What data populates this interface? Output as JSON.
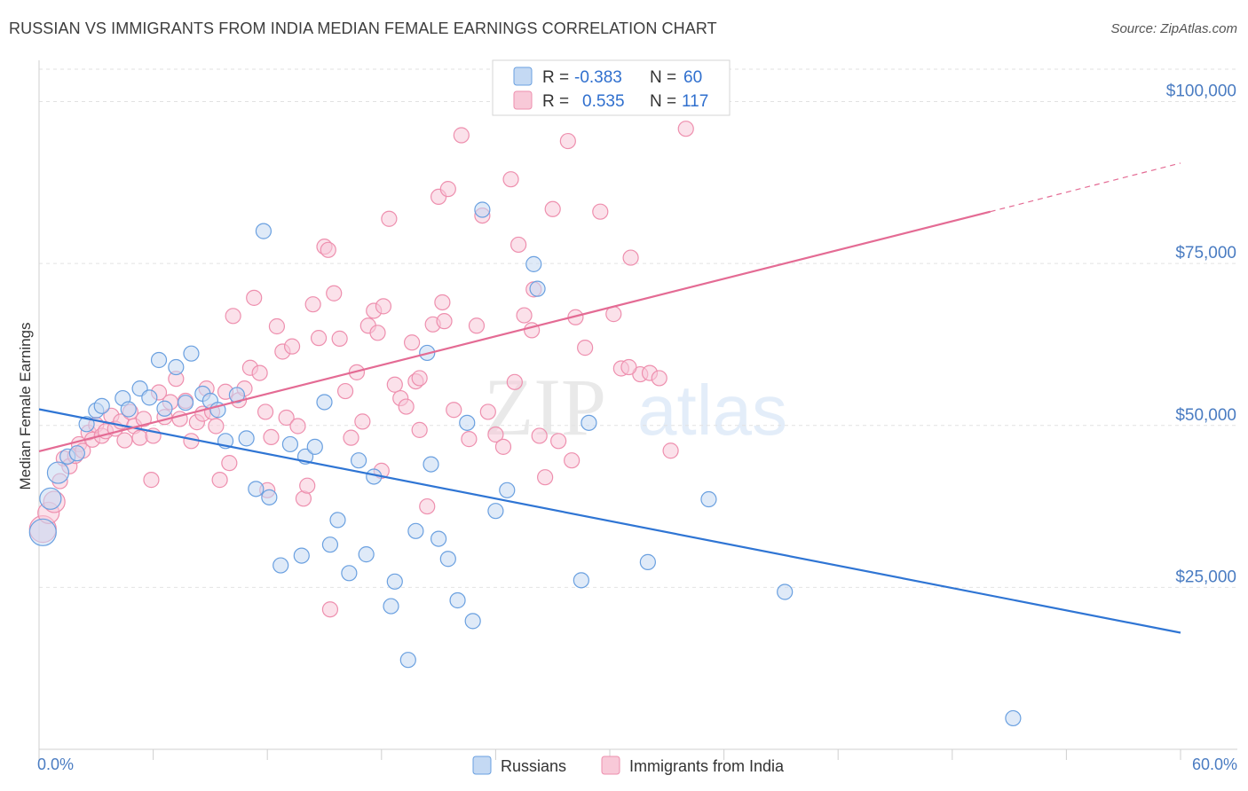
{
  "title": "RUSSIAN VS IMMIGRANTS FROM INDIA MEDIAN FEMALE EARNINGS CORRELATION CHART",
  "source": "Source: ZipAtlas.com",
  "watermark": {
    "part1": "ZIP",
    "part2": "atlas"
  },
  "chart_data": {
    "type": "scatter",
    "ylabel": "Median Female Earnings",
    "xlim": [
      0,
      60
    ],
    "ylim": [
      0,
      105000
    ],
    "x_tick_labels": {
      "min": "0.0%",
      "max": "60.0%"
    },
    "y_ticks": [
      {
        "value": 25000,
        "label": "$25,000"
      },
      {
        "value": 50000,
        "label": "$50,000"
      },
      {
        "value": 75000,
        "label": "$75,000"
      },
      {
        "value": 100000,
        "label": "$100,000"
      }
    ],
    "grid": true,
    "legend_position": "top-center",
    "series": [
      {
        "name": "Russians",
        "color": "#6aa0e0",
        "fill": "#c4d9f3",
        "line_color": "#2f75d4",
        "r_label": "R =",
        "r_value": "-0.383",
        "n_label": "N =",
        "n_value": "60",
        "trend": {
          "x": [
            0,
            60
          ],
          "y": [
            52500,
            18000
          ]
        },
        "points": [
          [
            0.2,
            33500
          ],
          [
            0.6,
            38700
          ],
          [
            1.0,
            42700
          ],
          [
            1.5,
            45200
          ],
          [
            2.0,
            45700
          ],
          [
            2.5,
            50200
          ],
          [
            3.0,
            52300
          ],
          [
            3.3,
            53000
          ],
          [
            4.4,
            54200
          ],
          [
            4.7,
            52500
          ],
          [
            5.3,
            55700
          ],
          [
            5.8,
            54300
          ],
          [
            6.3,
            60100
          ],
          [
            6.6,
            52600
          ],
          [
            7.2,
            59000
          ],
          [
            7.7,
            53500
          ],
          [
            8.0,
            61100
          ],
          [
            8.6,
            54900
          ],
          [
            9.0,
            53800
          ],
          [
            9.4,
            52400
          ],
          [
            9.8,
            47600
          ],
          [
            10.4,
            54700
          ],
          [
            10.9,
            48000
          ],
          [
            11.4,
            40200
          ],
          [
            11.8,
            80000
          ],
          [
            12.1,
            38900
          ],
          [
            12.7,
            28400
          ],
          [
            13.2,
            47100
          ],
          [
            13.8,
            29900
          ],
          [
            14.0,
            45200
          ],
          [
            14.5,
            46700
          ],
          [
            15.0,
            53600
          ],
          [
            15.3,
            31600
          ],
          [
            15.7,
            35400
          ],
          [
            16.3,
            27200
          ],
          [
            16.8,
            44600
          ],
          [
            17.2,
            30100
          ],
          [
            17.6,
            42100
          ],
          [
            18.5,
            22100
          ],
          [
            18.7,
            25900
          ],
          [
            19.4,
            13800
          ],
          [
            19.8,
            33700
          ],
          [
            20.4,
            61200
          ],
          [
            20.6,
            44000
          ],
          [
            21.0,
            32500
          ],
          [
            21.5,
            29400
          ],
          [
            22.0,
            23000
          ],
          [
            22.5,
            50400
          ],
          [
            22.8,
            19800
          ],
          [
            23.3,
            83300
          ],
          [
            24.0,
            36800
          ],
          [
            24.6,
            40000
          ],
          [
            26.0,
            74900
          ],
          [
            26.2,
            71100
          ],
          [
            28.5,
            26100
          ],
          [
            28.9,
            50400
          ],
          [
            32.0,
            28900
          ],
          [
            35.2,
            38600
          ],
          [
            39.2,
            24300
          ],
          [
            51.2,
            4800
          ]
        ]
      },
      {
        "name": "Immigrants from India",
        "color": "#ee8fae",
        "fill": "#f8c9d8",
        "line_color": "#e46b94",
        "r_label": "R =",
        "r_value": "0.535",
        "n_label": "N =",
        "n_value": "117",
        "trend": {
          "x": [
            0,
            50
          ],
          "y": [
            46000,
            83000
          ]
        },
        "trend_dashed": {
          "x": [
            50,
            60
          ],
          "y": [
            83000,
            90500
          ]
        },
        "points": [
          [
            0.2,
            34000
          ],
          [
            0.5,
            36500
          ],
          [
            0.8,
            38200
          ],
          [
            1.1,
            41400
          ],
          [
            1.3,
            44900
          ],
          [
            1.6,
            43700
          ],
          [
            1.9,
            45300
          ],
          [
            2.1,
            47100
          ],
          [
            2.3,
            46100
          ],
          [
            2.6,
            48900
          ],
          [
            2.8,
            47800
          ],
          [
            3.0,
            50100
          ],
          [
            3.3,
            48400
          ],
          [
            3.5,
            49100
          ],
          [
            3.8,
            51500
          ],
          [
            4.0,
            49500
          ],
          [
            4.3,
            50600
          ],
          [
            4.5,
            47700
          ],
          [
            4.8,
            52100
          ],
          [
            5.0,
            49900
          ],
          [
            5.3,
            48100
          ],
          [
            5.5,
            51000
          ],
          [
            5.9,
            41600
          ],
          [
            6.0,
            48400
          ],
          [
            6.3,
            55100
          ],
          [
            6.6,
            51300
          ],
          [
            6.9,
            53600
          ],
          [
            7.2,
            57200
          ],
          [
            7.4,
            51000
          ],
          [
            7.7,
            53800
          ],
          [
            8.0,
            47600
          ],
          [
            8.3,
            50500
          ],
          [
            8.6,
            51800
          ],
          [
            8.8,
            55700
          ],
          [
            9.1,
            52100
          ],
          [
            9.3,
            49900
          ],
          [
            9.5,
            41600
          ],
          [
            9.8,
            55200
          ],
          [
            10.0,
            44200
          ],
          [
            10.2,
            66900
          ],
          [
            10.5,
            53900
          ],
          [
            10.8,
            55700
          ],
          [
            11.1,
            58900
          ],
          [
            11.3,
            69700
          ],
          [
            11.6,
            58100
          ],
          [
            11.9,
            52100
          ],
          [
            12.2,
            48200
          ],
          [
            12.5,
            65300
          ],
          [
            12.8,
            61400
          ],
          [
            13.0,
            51200
          ],
          [
            13.3,
            62200
          ],
          [
            13.6,
            49900
          ],
          [
            13.9,
            38700
          ],
          [
            14.1,
            40700
          ],
          [
            14.4,
            68700
          ],
          [
            14.7,
            63500
          ],
          [
            15.0,
            77600
          ],
          [
            15.2,
            77100
          ],
          [
            15.5,
            70400
          ],
          [
            15.8,
            63400
          ],
          [
            16.1,
            55300
          ],
          [
            16.4,
            48100
          ],
          [
            16.7,
            58200
          ],
          [
            17.0,
            50600
          ],
          [
            17.3,
            65400
          ],
          [
            17.6,
            67700
          ],
          [
            17.8,
            64300
          ],
          [
            18.1,
            68400
          ],
          [
            18.4,
            81900
          ],
          [
            18.7,
            56300
          ],
          [
            19.0,
            54200
          ],
          [
            19.3,
            52900
          ],
          [
            19.6,
            62800
          ],
          [
            19.8,
            56800
          ],
          [
            20.0,
            57300
          ],
          [
            20.4,
            37500
          ],
          [
            20.7,
            65600
          ],
          [
            21.0,
            85300
          ],
          [
            21.3,
            66100
          ],
          [
            21.5,
            86500
          ],
          [
            21.8,
            52400
          ],
          [
            22.2,
            94800
          ],
          [
            22.6,
            47900
          ],
          [
            23.0,
            65400
          ],
          [
            23.3,
            82400
          ],
          [
            23.6,
            52100
          ],
          [
            24.0,
            48600
          ],
          [
            24.4,
            46700
          ],
          [
            24.8,
            88000
          ],
          [
            25.2,
            77900
          ],
          [
            25.5,
            67000
          ],
          [
            25.9,
            64700
          ],
          [
            26.3,
            48400
          ],
          [
            26.6,
            42000
          ],
          [
            27.0,
            83400
          ],
          [
            27.3,
            47600
          ],
          [
            27.8,
            93900
          ],
          [
            28.2,
            66700
          ],
          [
            28.7,
            62000
          ],
          [
            29.5,
            83000
          ],
          [
            30.2,
            67200
          ],
          [
            30.6,
            58800
          ],
          [
            31.1,
            75900
          ],
          [
            31.6,
            57900
          ],
          [
            32.1,
            58100
          ],
          [
            32.6,
            57300
          ],
          [
            33.2,
            46100
          ],
          [
            34.0,
            95800
          ],
          [
            15.3,
            21600
          ],
          [
            20.0,
            49300
          ],
          [
            21.2,
            69000
          ],
          [
            25.0,
            56700
          ],
          [
            31.0,
            59000
          ],
          [
            28.0,
            44600
          ],
          [
            18.0,
            43000
          ],
          [
            12.0,
            40000
          ],
          [
            26.0,
            71000
          ]
        ]
      }
    ]
  }
}
